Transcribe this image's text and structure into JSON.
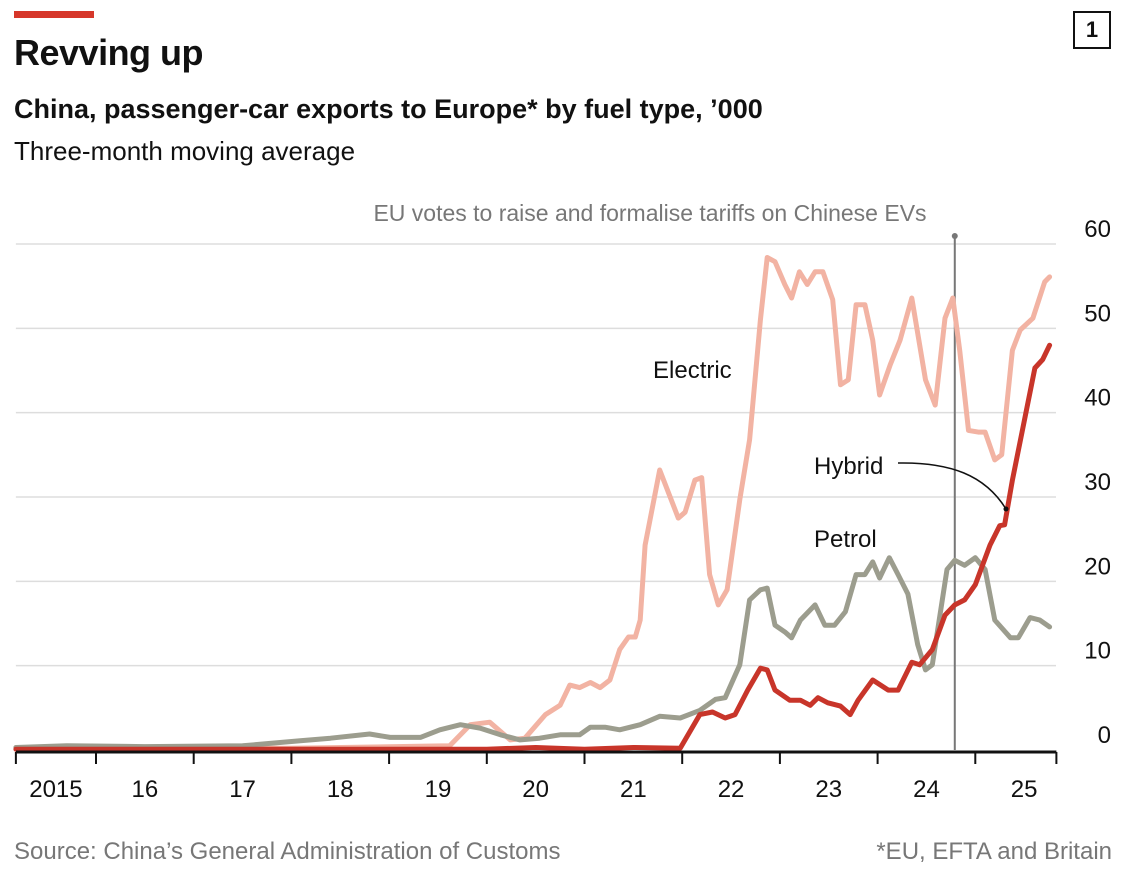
{
  "header": {
    "title": "Revving up",
    "subtitle": "China, passenger-car exports to Europe* by fuel type, ’000",
    "description": "Three-month moving average",
    "chart_number": "1"
  },
  "footer": {
    "source": "Source: China’s General Administration of Customs",
    "footnote": "*EU, EFTA and Britain"
  },
  "colors": {
    "accent": "#d6372a",
    "electric": "#f2b3a3",
    "petrol": "#9c9d8e",
    "hybrid": "#c8352a",
    "grid": "#dddddd"
  },
  "chart_data": {
    "type": "line",
    "title": "Revving up",
    "subtitle": "China, passenger-car exports to Europe* by fuel type, ’000",
    "xlabel": "",
    "ylabel": "",
    "xlim": [
      2015.18,
      2025.83
    ],
    "ylim": [
      0,
      60
    ],
    "yticks": [
      0,
      10,
      20,
      30,
      40,
      50,
      60
    ],
    "xtick_labels": [
      {
        "year": 2015,
        "label": "2015"
      },
      {
        "year": 2016,
        "label": "16"
      },
      {
        "year": 2017,
        "label": "17"
      },
      {
        "year": 2018,
        "label": "18"
      },
      {
        "year": 2019,
        "label": "19"
      },
      {
        "year": 2020,
        "label": "20"
      },
      {
        "year": 2021,
        "label": "21"
      },
      {
        "year": 2022,
        "label": "22"
      },
      {
        "year": 2023,
        "label": "23"
      },
      {
        "year": 2024,
        "label": "24"
      },
      {
        "year": 2025,
        "label": "25"
      }
    ],
    "grid": true,
    "y_axis_side": "right",
    "annotation": {
      "text": "EU votes to raise and formalise tariffs on Chinese EVs",
      "x": 2024.79
    },
    "series": [
      {
        "name": "Electric",
        "color": "#f2b3a3",
        "points": [
          [
            2015.18,
            0.3
          ],
          [
            2016.5,
            0.2
          ],
          [
            2018.0,
            0.2
          ],
          [
            2019.62,
            0.5
          ],
          [
            2019.83,
            3.0
          ],
          [
            2020.03,
            3.3
          ],
          [
            2020.24,
            1.2
          ],
          [
            2020.39,
            1.4
          ],
          [
            2020.6,
            4.2
          ],
          [
            2020.75,
            5.3
          ],
          [
            2020.85,
            7.7
          ],
          [
            2020.95,
            7.4
          ],
          [
            2021.06,
            8.0
          ],
          [
            2021.16,
            7.4
          ],
          [
            2021.26,
            8.3
          ],
          [
            2021.36,
            11.9
          ],
          [
            2021.45,
            13.4
          ],
          [
            2021.52,
            13.4
          ],
          [
            2021.57,
            15.4
          ],
          [
            2021.62,
            24.3
          ],
          [
            2021.77,
            33.2
          ],
          [
            2021.96,
            27.5
          ],
          [
            2022.03,
            28.2
          ],
          [
            2022.13,
            32.0
          ],
          [
            2022.2,
            32.3
          ],
          [
            2022.28,
            20.8
          ],
          [
            2022.37,
            17.2
          ],
          [
            2022.46,
            19.0
          ],
          [
            2022.59,
            29.7
          ],
          [
            2022.69,
            36.8
          ],
          [
            2022.8,
            51.0
          ],
          [
            2022.87,
            58.4
          ],
          [
            2022.95,
            57.9
          ],
          [
            2023.05,
            55.2
          ],
          [
            2023.12,
            53.6
          ],
          [
            2023.2,
            56.7
          ],
          [
            2023.28,
            55.2
          ],
          [
            2023.36,
            56.7
          ],
          [
            2023.44,
            56.7
          ],
          [
            2023.54,
            53.4
          ],
          [
            2023.62,
            43.3
          ],
          [
            2023.7,
            43.9
          ],
          [
            2023.78,
            52.8
          ],
          [
            2023.87,
            52.8
          ],
          [
            2023.95,
            48.6
          ],
          [
            2024.02,
            42.1
          ],
          [
            2024.13,
            45.7
          ],
          [
            2024.23,
            48.6
          ],
          [
            2024.35,
            53.6
          ],
          [
            2024.49,
            43.9
          ],
          [
            2024.59,
            40.9
          ],
          [
            2024.69,
            51.2
          ],
          [
            2024.77,
            53.6
          ],
          [
            2024.84,
            47.4
          ],
          [
            2024.93,
            37.9
          ],
          [
            2025.03,
            37.7
          ],
          [
            2025.1,
            37.7
          ],
          [
            2025.2,
            34.4
          ],
          [
            2025.27,
            35.0
          ],
          [
            2025.38,
            47.4
          ],
          [
            2025.46,
            49.8
          ],
          [
            2025.59,
            51.2
          ],
          [
            2025.71,
            55.5
          ],
          [
            2025.76,
            56.1
          ]
        ]
      },
      {
        "name": "Petrol",
        "color": "#9c9d8e",
        "points": [
          [
            2015.18,
            0.3
          ],
          [
            2015.7,
            0.5
          ],
          [
            2016.5,
            0.4
          ],
          [
            2017.5,
            0.5
          ],
          [
            2018.09,
            1.1
          ],
          [
            2018.4,
            1.4
          ],
          [
            2018.8,
            1.9
          ],
          [
            2019.01,
            1.5
          ],
          [
            2019.32,
            1.5
          ],
          [
            2019.52,
            2.4
          ],
          [
            2019.73,
            3.0
          ],
          [
            2019.93,
            2.6
          ],
          [
            2020.14,
            1.8
          ],
          [
            2020.34,
            1.2
          ],
          [
            2020.54,
            1.4
          ],
          [
            2020.75,
            1.8
          ],
          [
            2020.95,
            1.8
          ],
          [
            2021.06,
            2.7
          ],
          [
            2021.21,
            2.7
          ],
          [
            2021.36,
            2.4
          ],
          [
            2021.57,
            3.0
          ],
          [
            2021.77,
            4.0
          ],
          [
            2021.98,
            3.8
          ],
          [
            2022.18,
            4.7
          ],
          [
            2022.34,
            6.0
          ],
          [
            2022.44,
            6.2
          ],
          [
            2022.59,
            10.1
          ],
          [
            2022.69,
            17.8
          ],
          [
            2022.8,
            19.0
          ],
          [
            2022.87,
            19.2
          ],
          [
            2022.95,
            14.8
          ],
          [
            2023.05,
            14.0
          ],
          [
            2023.12,
            13.3
          ],
          [
            2023.21,
            15.4
          ],
          [
            2023.36,
            17.2
          ],
          [
            2023.46,
            14.8
          ],
          [
            2023.56,
            14.8
          ],
          [
            2023.67,
            16.4
          ],
          [
            2023.78,
            20.8
          ],
          [
            2023.87,
            20.8
          ],
          [
            2023.95,
            22.3
          ],
          [
            2024.02,
            20.4
          ],
          [
            2024.12,
            22.8
          ],
          [
            2024.21,
            20.8
          ],
          [
            2024.31,
            18.5
          ],
          [
            2024.41,
            12.5
          ],
          [
            2024.49,
            9.5
          ],
          [
            2024.56,
            10.1
          ],
          [
            2024.71,
            21.4
          ],
          [
            2024.79,
            22.5
          ],
          [
            2024.89,
            21.9
          ],
          [
            2025.0,
            22.8
          ],
          [
            2025.1,
            21.4
          ],
          [
            2025.2,
            15.4
          ],
          [
            2025.36,
            13.3
          ],
          [
            2025.44,
            13.3
          ],
          [
            2025.56,
            15.7
          ],
          [
            2025.66,
            15.4
          ],
          [
            2025.76,
            14.6
          ]
        ]
      },
      {
        "name": "Hybrid",
        "color": "#c8352a",
        "points": [
          [
            2015.18,
            0.1
          ],
          [
            2020.0,
            0.1
          ],
          [
            2020.5,
            0.3
          ],
          [
            2021.0,
            0.1
          ],
          [
            2021.5,
            0.3
          ],
          [
            2021.98,
            0.2
          ],
          [
            2022.18,
            4.2
          ],
          [
            2022.31,
            4.5
          ],
          [
            2022.44,
            3.8
          ],
          [
            2022.54,
            4.2
          ],
          [
            2022.67,
            7.1
          ],
          [
            2022.8,
            9.7
          ],
          [
            2022.87,
            9.5
          ],
          [
            2022.95,
            7.1
          ],
          [
            2023.1,
            5.9
          ],
          [
            2023.21,
            5.9
          ],
          [
            2023.31,
            5.3
          ],
          [
            2023.39,
            6.2
          ],
          [
            2023.49,
            5.6
          ],
          [
            2023.62,
            5.2
          ],
          [
            2023.72,
            4.2
          ],
          [
            2023.8,
            5.9
          ],
          [
            2023.95,
            8.3
          ],
          [
            2024.11,
            7.1
          ],
          [
            2024.21,
            7.1
          ],
          [
            2024.35,
            10.4
          ],
          [
            2024.43,
            10.1
          ],
          [
            2024.56,
            11.9
          ],
          [
            2024.69,
            16.0
          ],
          [
            2024.79,
            17.2
          ],
          [
            2024.89,
            17.8
          ],
          [
            2025.0,
            19.6
          ],
          [
            2025.15,
            24.3
          ],
          [
            2025.25,
            26.6
          ],
          [
            2025.3,
            26.7
          ],
          [
            2025.38,
            32.0
          ],
          [
            2025.61,
            45.3
          ],
          [
            2025.69,
            46.3
          ],
          [
            2025.76,
            48.0
          ]
        ]
      }
    ]
  }
}
